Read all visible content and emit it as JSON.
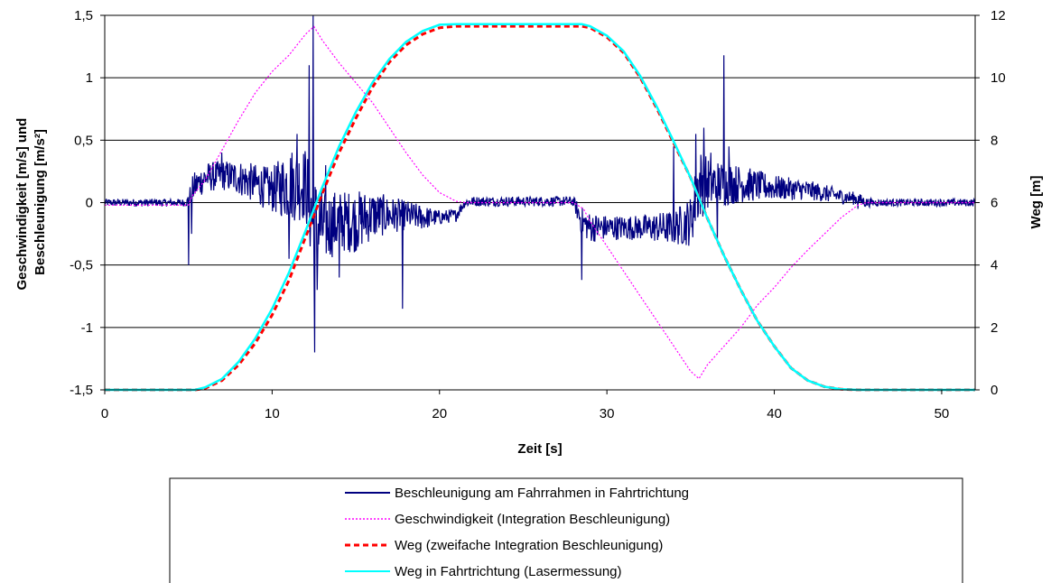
{
  "chart_data": {
    "type": "line",
    "xlabel": "Zeit [s]",
    "ylabel_left": [
      "Geschwindigkeit [m/s] und",
      "Beschleunigung [m/s²]"
    ],
    "ylabel_right": "Weg [m]",
    "xlim": [
      0,
      52
    ],
    "ylim_left": [
      -1.5,
      1.5
    ],
    "ylim_right": [
      0,
      12
    ],
    "x_ticks": [
      0,
      10,
      20,
      30,
      40,
      50
    ],
    "x_tick_labels": [
      "0",
      "10",
      "20",
      "30",
      "40",
      "50"
    ],
    "y_left_ticks": [
      -1.5,
      -1,
      -0.5,
      0,
      0.5,
      1,
      1.5
    ],
    "y_left_tick_labels": [
      "-1,5",
      "-1",
      "-0,5",
      "0",
      "0,5",
      "1",
      "1,5"
    ],
    "y_right_ticks": [
      0,
      2,
      4,
      6,
      8,
      10,
      12
    ],
    "y_right_tick_labels": [
      "0",
      "2",
      "4",
      "6",
      "8",
      "10",
      "12"
    ],
    "grid": "horizontal",
    "legend_position": "bottom",
    "series": [
      {
        "name": "Beschleunigung am Fahrrahmen in Fahrtrichtung",
        "axis": "left",
        "color": "#000080",
        "style": "solid",
        "envelope": {
          "x": [
            0,
            4.9,
            5.3,
            6,
            7,
            8,
            9,
            10,
            11,
            12,
            12.5,
            13,
            14,
            15,
            16,
            17,
            18,
            19,
            20,
            21,
            21.5,
            22,
            25,
            28,
            28.5,
            29,
            30,
            31,
            32,
            33,
            34,
            35,
            35.5,
            36,
            37,
            38,
            40,
            42,
            44,
            45,
            45.5,
            46,
            52
          ],
          "mean": [
            0,
            0,
            0.12,
            0.2,
            0.22,
            0.2,
            0.15,
            0.1,
            0.15,
            0.15,
            -0.2,
            -0.2,
            -0.15,
            -0.15,
            -0.1,
            -0.1,
            -0.1,
            -0.12,
            -0.12,
            -0.1,
            0,
            0.01,
            0.01,
            0.01,
            -0.15,
            -0.2,
            -0.2,
            -0.2,
            -0.2,
            -0.2,
            -0.2,
            -0.15,
            0.15,
            0.15,
            0.15,
            0.15,
            0.12,
            0.1,
            0.05,
            0.03,
            0,
            0,
            0
          ],
          "amp": [
            0.03,
            0.03,
            0.12,
            0.12,
            0.12,
            0.14,
            0.16,
            0.18,
            0.3,
            0.3,
            0.45,
            0.3,
            0.25,
            0.25,
            0.2,
            0.15,
            0.12,
            0.1,
            0.06,
            0.05,
            0.04,
            0.04,
            0.04,
            0.04,
            0.12,
            0.12,
            0.1,
            0.1,
            0.1,
            0.12,
            0.14,
            0.2,
            0.3,
            0.22,
            0.18,
            0.15,
            0.1,
            0.08,
            0.06,
            0.05,
            0.04,
            0.03,
            0.03
          ]
        },
        "spikes": [
          {
            "x": 5.0,
            "y": -0.5
          },
          {
            "x": 5.2,
            "y": -0.25
          },
          {
            "x": 7.0,
            "y": 0.4
          },
          {
            "x": 11.0,
            "y": -0.45
          },
          {
            "x": 11.5,
            "y": 0.55
          },
          {
            "x": 12.2,
            "y": 1.1
          },
          {
            "x": 12.45,
            "y": 1.5
          },
          {
            "x": 12.55,
            "y": -1.2
          },
          {
            "x": 12.7,
            "y": -0.7
          },
          {
            "x": 13.2,
            "y": 0.3
          },
          {
            "x": 14.0,
            "y": -0.6
          },
          {
            "x": 17.8,
            "y": -0.85
          },
          {
            "x": 28.5,
            "y": -0.62
          },
          {
            "x": 34.0,
            "y": 0.45
          },
          {
            "x": 35.3,
            "y": 0.55
          },
          {
            "x": 35.8,
            "y": 0.6
          },
          {
            "x": 36.2,
            "y": 0.4
          },
          {
            "x": 36.6,
            "y": -0.3
          },
          {
            "x": 37.0,
            "y": 1.18
          },
          {
            "x": 37.3,
            "y": 0.45
          },
          {
            "x": 45.0,
            "y": -0.05
          }
        ]
      },
      {
        "name": "Geschwindigkeit (Integration Beschleunigung)",
        "axis": "left",
        "color": "#ff00ff",
        "style": "dotted",
        "x": [
          0,
          5.0,
          5.2,
          6.0,
          7.0,
          8.0,
          9.0,
          10.0,
          11.0,
          12.0,
          12.5,
          13.0,
          14.0,
          15.0,
          16.0,
          17.0,
          18.0,
          19.0,
          20.0,
          21.0,
          21.5,
          22.0,
          25.0,
          28.0,
          28.6,
          29.0,
          30.0,
          31.0,
          32.0,
          33.0,
          34.0,
          35.0,
          35.5,
          36.0,
          37.0,
          38.0,
          39.0,
          40.0,
          41.0,
          42.0,
          43.0,
          44.0,
          45.0,
          45.5,
          46.0,
          52.0
        ],
        "y": [
          -0.02,
          -0.02,
          0.05,
          0.18,
          0.42,
          0.66,
          0.88,
          1.05,
          1.18,
          1.35,
          1.41,
          1.3,
          1.12,
          0.96,
          0.8,
          0.6,
          0.4,
          0.22,
          0.08,
          0.01,
          0.0,
          0.0,
          0.0,
          0.0,
          -0.05,
          -0.15,
          -0.35,
          -0.55,
          -0.75,
          -0.95,
          -1.15,
          -1.35,
          -1.41,
          -1.3,
          -1.15,
          -1.0,
          -0.82,
          -0.68,
          -0.52,
          -0.38,
          -0.25,
          -0.12,
          -0.02,
          0.0,
          0.0,
          0.0
        ]
      },
      {
        "name": "Weg (zweifache Integration Beschleunigung)",
        "axis": "right",
        "color": "#ff0000",
        "style": "dashed",
        "x": [
          0,
          5.4,
          6.0,
          7.0,
          8.0,
          9.0,
          10.0,
          11.0,
          12.0,
          13.0,
          14.0,
          15.0,
          16.0,
          17.0,
          18.0,
          19.0,
          20.0,
          21.0,
          22.0,
          25.0,
          28.5,
          29.0,
          30.0,
          31.0,
          32.0,
          33.0,
          34.0,
          35.0,
          36.0,
          37.0,
          38.0,
          39.0,
          40.0,
          41.0,
          42.0,
          43.0,
          44.0,
          45.0,
          52.0
        ],
        "y": [
          0,
          0,
          0.05,
          0.3,
          0.8,
          1.5,
          2.4,
          3.5,
          4.9,
          6.3,
          7.6,
          8.7,
          9.7,
          10.5,
          11.05,
          11.4,
          11.6,
          11.65,
          11.65,
          11.65,
          11.65,
          11.6,
          11.3,
          10.8,
          10.0,
          9.0,
          7.9,
          6.8,
          5.5,
          4.3,
          3.2,
          2.2,
          1.4,
          0.7,
          0.3,
          0.1,
          0.02,
          0,
          0
        ]
      },
      {
        "name": "Weg in Fahrtrichtung (Lasermessung)",
        "axis": "right",
        "color": "#00ffff",
        "style": "solid",
        "x": [
          0,
          5.4,
          6.0,
          7.0,
          8.0,
          9.0,
          10.0,
          11.0,
          12.0,
          13.0,
          14.0,
          15.0,
          16.0,
          17.0,
          18.0,
          19.0,
          20.0,
          21.0,
          22.0,
          25.0,
          28.5,
          29.0,
          30.0,
          31.0,
          32.0,
          33.0,
          34.0,
          35.0,
          36.0,
          37.0,
          38.0,
          39.0,
          40.0,
          41.0,
          42.0,
          43.0,
          44.0,
          45.0,
          52.0
        ],
        "y": [
          0,
          0,
          0.08,
          0.35,
          0.9,
          1.65,
          2.6,
          3.75,
          5.1,
          6.5,
          7.8,
          8.9,
          9.85,
          10.6,
          11.15,
          11.5,
          11.7,
          11.72,
          11.72,
          11.72,
          11.72,
          11.65,
          11.35,
          10.85,
          10.05,
          9.05,
          7.95,
          6.8,
          5.5,
          4.3,
          3.2,
          2.2,
          1.4,
          0.7,
          0.3,
          0.1,
          0.02,
          0,
          0
        ]
      }
    ]
  }
}
